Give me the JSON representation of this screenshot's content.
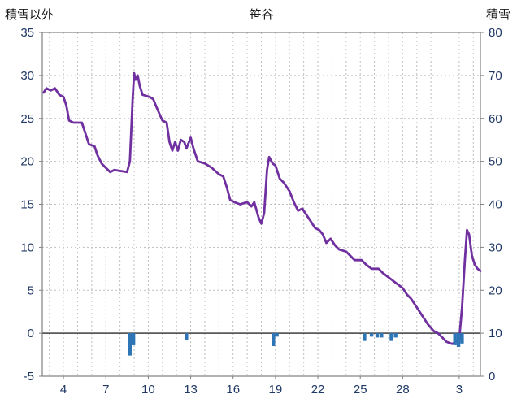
{
  "colors": {
    "line": "#7030A0",
    "bars": "#2E75B6",
    "grid": "#BFBFBF",
    "zero_line": "#595959",
    "border": "#808080",
    "axis_text": "#1F3864",
    "title_text": "#1A1A1A",
    "background": "#FFFFFF"
  },
  "chart_data": {
    "type": "line+bar",
    "title": "笹谷",
    "left_axis": {
      "title": "積雪以外",
      "min": -5,
      "max": 35,
      "step": 5,
      "ticks": [
        35,
        30,
        25,
        20,
        15,
        10,
        5,
        0,
        -5
      ]
    },
    "right_axis": {
      "title": "積雪",
      "min": 0,
      "max": 80,
      "step": 10,
      "ticks": [
        80,
        70,
        60,
        50,
        40,
        30,
        20,
        10,
        0
      ]
    },
    "x_axis": {
      "min": 2.5,
      "max": 33.5,
      "gridline_every_day": true,
      "tick_labels": [
        {
          "day": 4,
          "label": "4"
        },
        {
          "day": 7,
          "label": "7"
        },
        {
          "day": 10,
          "label": "10"
        },
        {
          "day": 13,
          "label": "13"
        },
        {
          "day": 16,
          "label": "16"
        },
        {
          "day": 19,
          "label": "19"
        },
        {
          "day": 22,
          "label": "22"
        },
        {
          "day": 25,
          "label": "25"
        },
        {
          "day": 28,
          "label": "28"
        },
        {
          "day": 32,
          "label": "3"
        }
      ]
    },
    "series": [
      {
        "name": "積雪",
        "type": "line",
        "axis": "right",
        "color": "#7030A0",
        "points": [
          [
            2.6,
            66
          ],
          [
            2.8,
            67
          ],
          [
            3.1,
            66.5
          ],
          [
            3.4,
            67
          ],
          [
            3.7,
            65.5
          ],
          [
            4.0,
            65
          ],
          [
            4.2,
            63
          ],
          [
            4.4,
            59.5
          ],
          [
            4.7,
            59
          ],
          [
            5.3,
            59
          ],
          [
            5.5,
            57
          ],
          [
            5.8,
            54
          ],
          [
            6.2,
            53.5
          ],
          [
            6.4,
            51.5
          ],
          [
            6.7,
            49.5
          ],
          [
            7.0,
            48.5
          ],
          [
            7.3,
            47.5
          ],
          [
            7.6,
            48
          ],
          [
            8.5,
            47.5
          ],
          [
            8.7,
            50
          ],
          [
            8.9,
            65
          ],
          [
            9.0,
            70.5
          ],
          [
            9.1,
            69
          ],
          [
            9.25,
            70
          ],
          [
            9.4,
            67.5
          ],
          [
            9.6,
            65.5
          ],
          [
            10.1,
            65
          ],
          [
            10.35,
            64.5
          ],
          [
            10.6,
            62.5
          ],
          [
            10.8,
            61
          ],
          [
            11.0,
            59.5
          ],
          [
            11.3,
            59
          ],
          [
            11.5,
            54.5
          ],
          [
            11.7,
            52.5
          ],
          [
            11.9,
            54.5
          ],
          [
            12.1,
            52.5
          ],
          [
            12.3,
            55
          ],
          [
            12.55,
            54.5
          ],
          [
            12.7,
            53
          ],
          [
            13.0,
            55.5
          ],
          [
            13.2,
            53
          ],
          [
            13.5,
            50
          ],
          [
            14.0,
            49.5
          ],
          [
            14.5,
            48.5
          ],
          [
            15.0,
            47
          ],
          [
            15.3,
            46.5
          ],
          [
            15.55,
            44
          ],
          [
            15.8,
            41
          ],
          [
            16.1,
            40.5
          ],
          [
            16.5,
            40
          ],
          [
            17.0,
            40.5
          ],
          [
            17.3,
            39.5
          ],
          [
            17.5,
            40.5
          ],
          [
            17.8,
            37
          ],
          [
            18.0,
            35.5
          ],
          [
            18.2,
            38
          ],
          [
            18.4,
            48
          ],
          [
            18.55,
            51
          ],
          [
            18.8,
            49.5
          ],
          [
            19.0,
            49
          ],
          [
            19.3,
            46
          ],
          [
            19.6,
            45
          ],
          [
            20.0,
            43
          ],
          [
            20.3,
            40.5
          ],
          [
            20.6,
            38.5
          ],
          [
            20.9,
            39
          ],
          [
            21.2,
            37.5
          ],
          [
            21.5,
            36
          ],
          [
            21.8,
            34.5
          ],
          [
            22.1,
            34
          ],
          [
            22.35,
            33
          ],
          [
            22.6,
            31
          ],
          [
            22.9,
            32
          ],
          [
            23.2,
            30.5
          ],
          [
            23.5,
            29.5
          ],
          [
            24.0,
            29
          ],
          [
            24.3,
            28
          ],
          [
            24.6,
            27
          ],
          [
            25.1,
            27
          ],
          [
            25.4,
            26
          ],
          [
            25.8,
            25
          ],
          [
            26.3,
            25
          ],
          [
            26.6,
            24
          ],
          [
            27.0,
            23
          ],
          [
            27.4,
            22
          ],
          [
            27.8,
            21
          ],
          [
            28.0,
            20.5
          ],
          [
            28.3,
            19
          ],
          [
            28.6,
            18
          ],
          [
            29.0,
            16
          ],
          [
            29.4,
            14
          ],
          [
            29.8,
            12
          ],
          [
            30.2,
            10.5
          ],
          [
            30.5,
            10
          ],
          [
            30.8,
            9
          ],
          [
            31.1,
            8
          ],
          [
            31.5,
            7.5
          ],
          [
            31.8,
            8
          ],
          [
            32.0,
            8.5
          ],
          [
            32.2,
            16
          ],
          [
            32.4,
            27
          ],
          [
            32.55,
            34
          ],
          [
            32.7,
            33
          ],
          [
            32.9,
            28
          ],
          [
            33.1,
            26
          ],
          [
            33.3,
            25
          ],
          [
            33.5,
            24.5
          ]
        ]
      },
      {
        "name": "積雪以外",
        "type": "bar",
        "axis": "left",
        "color": "#2E75B6",
        "points": [
          [
            8.7,
            -2.6
          ],
          [
            8.95,
            -1.4
          ],
          [
            12.7,
            -0.8
          ],
          [
            18.85,
            -1.5
          ],
          [
            19.1,
            -0.4
          ],
          [
            25.3,
            -0.9
          ],
          [
            25.8,
            -0.4
          ],
          [
            26.2,
            -0.5
          ],
          [
            26.5,
            -0.5
          ],
          [
            27.2,
            -0.9
          ],
          [
            27.5,
            -0.5
          ],
          [
            31.7,
            -1.4
          ],
          [
            31.95,
            -1.6
          ],
          [
            32.2,
            -1.2
          ]
        ]
      }
    ]
  }
}
